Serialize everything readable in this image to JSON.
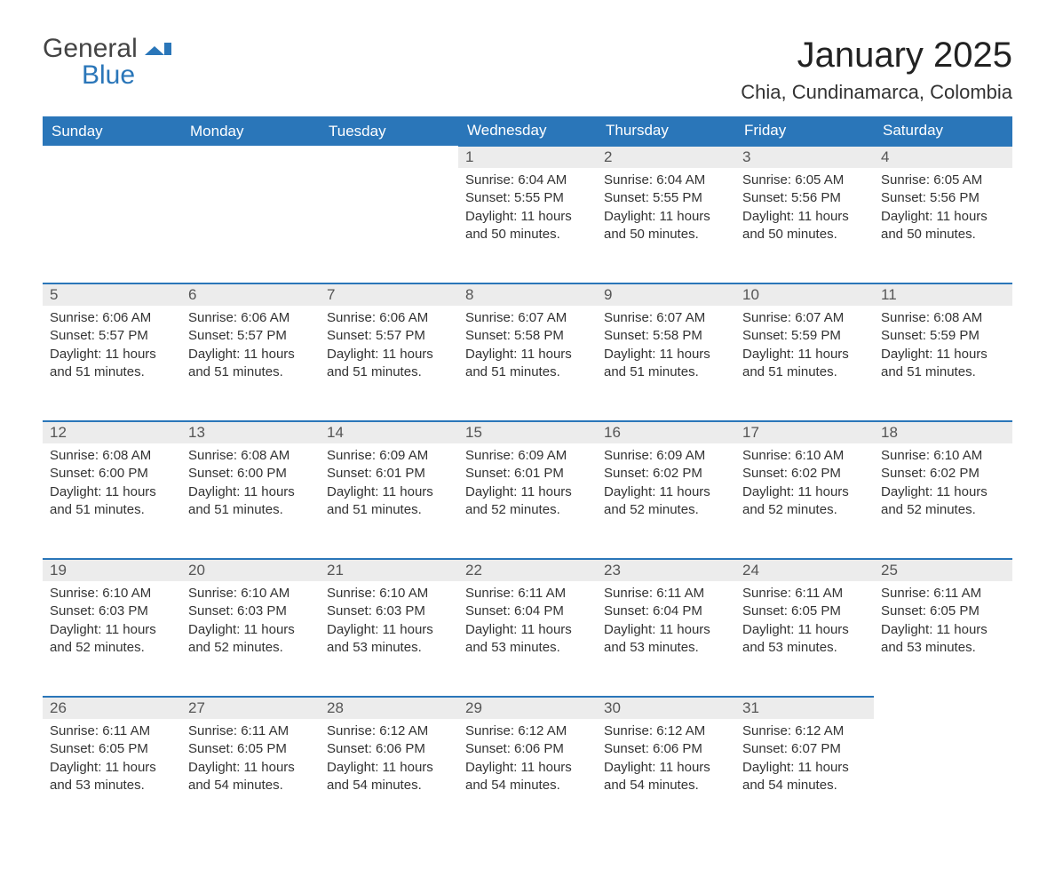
{
  "logo": {
    "line1": "General",
    "line2": "Blue"
  },
  "title": "January 2025",
  "location": "Chia, Cundinamarca, Colombia",
  "colors": {
    "header_bg": "#2a76b9",
    "header_fg": "#ffffff",
    "daynum_bg": "#ececec",
    "row_border": "#2a76b9",
    "text": "#333333",
    "logo_gray": "#444444",
    "logo_blue": "#2a76b9"
  },
  "weekdays": [
    "Sunday",
    "Monday",
    "Tuesday",
    "Wednesday",
    "Thursday",
    "Friday",
    "Saturday"
  ],
  "weeks": [
    [
      null,
      null,
      null,
      {
        "n": "1",
        "sr": "6:04 AM",
        "ss": "5:55 PM",
        "dl": "11 hours and 50 minutes."
      },
      {
        "n": "2",
        "sr": "6:04 AM",
        "ss": "5:55 PM",
        "dl": "11 hours and 50 minutes."
      },
      {
        "n": "3",
        "sr": "6:05 AM",
        "ss": "5:56 PM",
        "dl": "11 hours and 50 minutes."
      },
      {
        "n": "4",
        "sr": "6:05 AM",
        "ss": "5:56 PM",
        "dl": "11 hours and 50 minutes."
      }
    ],
    [
      {
        "n": "5",
        "sr": "6:06 AM",
        "ss": "5:57 PM",
        "dl": "11 hours and 51 minutes."
      },
      {
        "n": "6",
        "sr": "6:06 AM",
        "ss": "5:57 PM",
        "dl": "11 hours and 51 minutes."
      },
      {
        "n": "7",
        "sr": "6:06 AM",
        "ss": "5:57 PM",
        "dl": "11 hours and 51 minutes."
      },
      {
        "n": "8",
        "sr": "6:07 AM",
        "ss": "5:58 PM",
        "dl": "11 hours and 51 minutes."
      },
      {
        "n": "9",
        "sr": "6:07 AM",
        "ss": "5:58 PM",
        "dl": "11 hours and 51 minutes."
      },
      {
        "n": "10",
        "sr": "6:07 AM",
        "ss": "5:59 PM",
        "dl": "11 hours and 51 minutes."
      },
      {
        "n": "11",
        "sr": "6:08 AM",
        "ss": "5:59 PM",
        "dl": "11 hours and 51 minutes."
      }
    ],
    [
      {
        "n": "12",
        "sr": "6:08 AM",
        "ss": "6:00 PM",
        "dl": "11 hours and 51 minutes."
      },
      {
        "n": "13",
        "sr": "6:08 AM",
        "ss": "6:00 PM",
        "dl": "11 hours and 51 minutes."
      },
      {
        "n": "14",
        "sr": "6:09 AM",
        "ss": "6:01 PM",
        "dl": "11 hours and 51 minutes."
      },
      {
        "n": "15",
        "sr": "6:09 AM",
        "ss": "6:01 PM",
        "dl": "11 hours and 52 minutes."
      },
      {
        "n": "16",
        "sr": "6:09 AM",
        "ss": "6:02 PM",
        "dl": "11 hours and 52 minutes."
      },
      {
        "n": "17",
        "sr": "6:10 AM",
        "ss": "6:02 PM",
        "dl": "11 hours and 52 minutes."
      },
      {
        "n": "18",
        "sr": "6:10 AM",
        "ss": "6:02 PM",
        "dl": "11 hours and 52 minutes."
      }
    ],
    [
      {
        "n": "19",
        "sr": "6:10 AM",
        "ss": "6:03 PM",
        "dl": "11 hours and 52 minutes."
      },
      {
        "n": "20",
        "sr": "6:10 AM",
        "ss": "6:03 PM",
        "dl": "11 hours and 52 minutes."
      },
      {
        "n": "21",
        "sr": "6:10 AM",
        "ss": "6:03 PM",
        "dl": "11 hours and 53 minutes."
      },
      {
        "n": "22",
        "sr": "6:11 AM",
        "ss": "6:04 PM",
        "dl": "11 hours and 53 minutes."
      },
      {
        "n": "23",
        "sr": "6:11 AM",
        "ss": "6:04 PM",
        "dl": "11 hours and 53 minutes."
      },
      {
        "n": "24",
        "sr": "6:11 AM",
        "ss": "6:05 PM",
        "dl": "11 hours and 53 minutes."
      },
      {
        "n": "25",
        "sr": "6:11 AM",
        "ss": "6:05 PM",
        "dl": "11 hours and 53 minutes."
      }
    ],
    [
      {
        "n": "26",
        "sr": "6:11 AM",
        "ss": "6:05 PM",
        "dl": "11 hours and 53 minutes."
      },
      {
        "n": "27",
        "sr": "6:11 AM",
        "ss": "6:05 PM",
        "dl": "11 hours and 54 minutes."
      },
      {
        "n": "28",
        "sr": "6:12 AM",
        "ss": "6:06 PM",
        "dl": "11 hours and 54 minutes."
      },
      {
        "n": "29",
        "sr": "6:12 AM",
        "ss": "6:06 PM",
        "dl": "11 hours and 54 minutes."
      },
      {
        "n": "30",
        "sr": "6:12 AM",
        "ss": "6:06 PM",
        "dl": "11 hours and 54 minutes."
      },
      {
        "n": "31",
        "sr": "6:12 AM",
        "ss": "6:07 PM",
        "dl": "11 hours and 54 minutes."
      },
      null
    ]
  ],
  "labels": {
    "sunrise": "Sunrise: ",
    "sunset": "Sunset: ",
    "daylight": "Daylight: "
  }
}
